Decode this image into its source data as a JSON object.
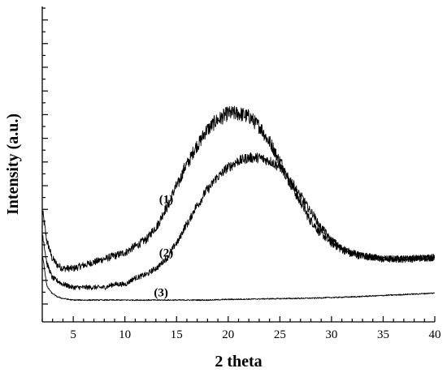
{
  "chart_data": {
    "type": "line",
    "xlabel": "2 theta",
    "ylabel": "Intensity (a.u.)",
    "xlim": [
      2,
      40
    ],
    "ylim": [
      0,
      100
    ],
    "xticks": [
      5,
      10,
      15,
      20,
      25,
      30,
      35,
      40
    ],
    "y_tick_labels_shown": false,
    "grid": false,
    "series": [
      {
        "name": "(1)",
        "label_at": [
          14,
          33
        ],
        "x": [
          2,
          2.5,
          3,
          3.5,
          4,
          5,
          6,
          7,
          8,
          9,
          10,
          11,
          12,
          13,
          14,
          15,
          16,
          17,
          18,
          19,
          20,
          21,
          22,
          23,
          24,
          25,
          26,
          27,
          28,
          29,
          30,
          31,
          32,
          33,
          35,
          37,
          40
        ],
        "y": [
          29,
          19,
          14,
          12,
          11,
          11,
          12,
          13,
          14,
          15,
          16,
          18,
          20,
          24,
          30,
          37,
          44,
          50,
          55,
          58,
          60,
          60,
          59,
          56,
          51,
          45,
          38,
          32,
          26,
          22,
          19,
          17,
          15.5,
          15,
          14,
          14,
          14.5
        ]
      },
      {
        "name": "(2)",
        "label_at": [
          14,
          16
        ],
        "x": [
          2,
          2.5,
          3,
          3.5,
          4,
          5,
          6,
          7,
          8,
          9,
          10,
          11,
          12,
          13,
          14,
          15,
          16,
          17,
          18,
          19,
          20,
          21,
          22,
          23,
          24,
          25,
          26,
          27,
          28,
          29,
          30,
          31,
          32,
          33,
          35,
          37,
          40
        ],
        "y": [
          22,
          12,
          8,
          7,
          6,
          5,
          5,
          5,
          5,
          6,
          6,
          8,
          9,
          11,
          14,
          19,
          25,
          31,
          36,
          40,
          43,
          45,
          46,
          46,
          45,
          43,
          39,
          34,
          29,
          24,
          20,
          17.5,
          16,
          15,
          14,
          14,
          14.5
        ]
      },
      {
        "name": "(3)",
        "label_at": [
          13.5,
          3.5
        ],
        "x": [
          2,
          2.5,
          3,
          3.5,
          4,
          5,
          6,
          8,
          10,
          12,
          14,
          16,
          18,
          20,
          22,
          24,
          26,
          28,
          30,
          32,
          34,
          36,
          38,
          40
        ],
        "y": [
          15,
          5,
          3,
          2,
          1.5,
          1,
          1,
          1,
          1,
          1,
          1,
          1,
          1,
          1.2,
          1.3,
          1.4,
          1.5,
          1.6,
          1.8,
          2,
          2.3,
          2.6,
          2.9,
          3.2
        ]
      }
    ]
  }
}
